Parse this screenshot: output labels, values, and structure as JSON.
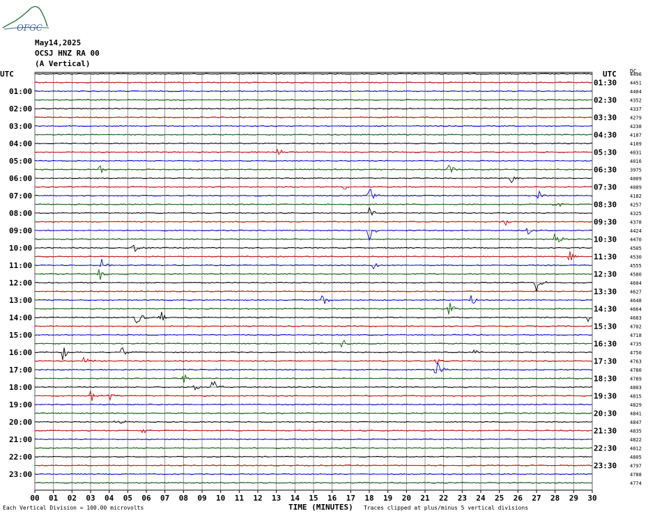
{
  "logo_text": "OFGC",
  "header": {
    "date": "May14,2025",
    "station": "OCSJ HNZ RA 00",
    "component": "(A Vertical)"
  },
  "left_axis_title": "UTC",
  "right_axis_title": "UTC",
  "counts_title": "DC",
  "footer": {
    "scale_note": "Each Vertical Division =  100.00 microvolts",
    "xlabel": "TIME (MINUTES)",
    "clip_note": "Traces clipped at plus/minus 5 vertical divisions"
  },
  "colors": {
    "trace_palette": [
      "#000000",
      "#e00000",
      "#0000e0",
      "#006400"
    ],
    "grid": "#000000",
    "vertical_grid": "#808080"
  },
  "chart_data": {
    "type": "line",
    "description_type": "helicorder",
    "x_ticks": [
      "00",
      "01",
      "02",
      "03",
      "04",
      "05",
      "06",
      "07",
      "08",
      "09",
      "10",
      "11",
      "12",
      "13",
      "14",
      "15",
      "16",
      "17",
      "18",
      "19",
      "20",
      "21",
      "22",
      "23",
      "24",
      "25",
      "26",
      "27",
      "28",
      "29",
      "30"
    ],
    "xlim": [
      0,
      30
    ],
    "left_hour_labels": [
      "01:00",
      "02:00",
      "03:00",
      "04:00",
      "05:00",
      "06:00",
      "07:00",
      "08:00",
      "09:00",
      "10:00",
      "11:00",
      "12:00",
      "13:00",
      "14:00",
      "15:00",
      "16:00",
      "17:00",
      "18:00",
      "19:00",
      "20:00",
      "21:00",
      "22:00",
      "23:00"
    ],
    "right_hour_labels": [
      "01:30",
      "02:30",
      "03:30",
      "04:30",
      "05:30",
      "06:30",
      "07:30",
      "08:30",
      "09:30",
      "10:30",
      "11:30",
      "12:30",
      "13:30",
      "14:30",
      "15:30",
      "16:30",
      "17:30",
      "18:30",
      "19:30",
      "20:30",
      "21:30",
      "22:30",
      "23:30"
    ],
    "dc_values": [
      "4496",
      "4451",
      "4404",
      "4352",
      "4337",
      "4279",
      "4238",
      "4187",
      "4109",
      "4031",
      "4016",
      "3975",
      "4009",
      "4089",
      "4182",
      "4257",
      "4325",
      "4378",
      "4424",
      "4470",
      "4505",
      "4530",
      "4555",
      "4580",
      "4604",
      "4627",
      "4648",
      "4664",
      "4683",
      "4702",
      "4718",
      "4735",
      "4750",
      "4763",
      "4780",
      "4789",
      "4803",
      "4815",
      "4829",
      "4841",
      "4847",
      "4835",
      "4822",
      "4812",
      "4805",
      "4797",
      "4788",
      "4774"
    ],
    "events": [
      {
        "row": 9,
        "minute": 13.1,
        "amp": 10
      },
      {
        "row": 11,
        "minute": 3.5,
        "amp": 8
      },
      {
        "row": 11,
        "minute": 22.3,
        "amp": 9
      },
      {
        "row": 12,
        "minute": 25.6,
        "amp": 9
      },
      {
        "row": 13,
        "minute": 16.6,
        "amp": 7
      },
      {
        "row": 14,
        "minute": 18.0,
        "amp": 14
      },
      {
        "row": 14,
        "minute": 27.1,
        "amp": 8
      },
      {
        "row": 15,
        "minute": 28.0,
        "amp": 9
      },
      {
        "row": 16,
        "minute": 18.0,
        "amp": 12
      },
      {
        "row": 17,
        "minute": 25.3,
        "amp": 8
      },
      {
        "row": 18,
        "minute": 18.0,
        "amp": 14
      },
      {
        "row": 18,
        "minute": 26.5,
        "amp": 8
      },
      {
        "row": 19,
        "minute": 28.0,
        "amp": 18
      },
      {
        "row": 20,
        "minute": 5.3,
        "amp": 8
      },
      {
        "row": 21,
        "minute": 28.8,
        "amp": 9
      },
      {
        "row": 22,
        "minute": 3.6,
        "amp": 12
      },
      {
        "row": 22,
        "minute": 18.2,
        "amp": 9
      },
      {
        "row": 23,
        "minute": 3.5,
        "amp": 11
      },
      {
        "row": 24,
        "minute": 27.0,
        "amp": 16
      },
      {
        "row": 26,
        "minute": 15.5,
        "amp": 10
      },
      {
        "row": 26,
        "minute": 23.5,
        "amp": 9
      },
      {
        "row": 27,
        "minute": 22.3,
        "amp": 12
      },
      {
        "row": 28,
        "minute": 5.5,
        "amp": 16
      },
      {
        "row": 28,
        "minute": 6.8,
        "amp": 11
      },
      {
        "row": 28,
        "minute": 29.8,
        "amp": 9
      },
      {
        "row": 31,
        "minute": 16.5,
        "amp": 9
      },
      {
        "row": 32,
        "minute": 1.5,
        "amp": 12
      },
      {
        "row": 32,
        "minute": 4.7,
        "amp": 8
      },
      {
        "row": 32,
        "minute": 23.7,
        "amp": 8
      },
      {
        "row": 33,
        "minute": 2.7,
        "amp": 12
      },
      {
        "row": 33,
        "minute": 21.6,
        "amp": 8
      },
      {
        "row": 34,
        "minute": 21.6,
        "amp": 22
      },
      {
        "row": 35,
        "minute": 8.0,
        "amp": 8
      },
      {
        "row": 36,
        "minute": 9.6,
        "amp": 16
      },
      {
        "row": 36,
        "minute": 8.6,
        "amp": 8
      },
      {
        "row": 37,
        "minute": 3.0,
        "amp": 10
      },
      {
        "row": 37,
        "minute": 4.0,
        "amp": 8
      },
      {
        "row": 40,
        "minute": 4.4,
        "amp": 12
      },
      {
        "row": 41,
        "minute": 5.8,
        "amp": 8
      }
    ]
  }
}
